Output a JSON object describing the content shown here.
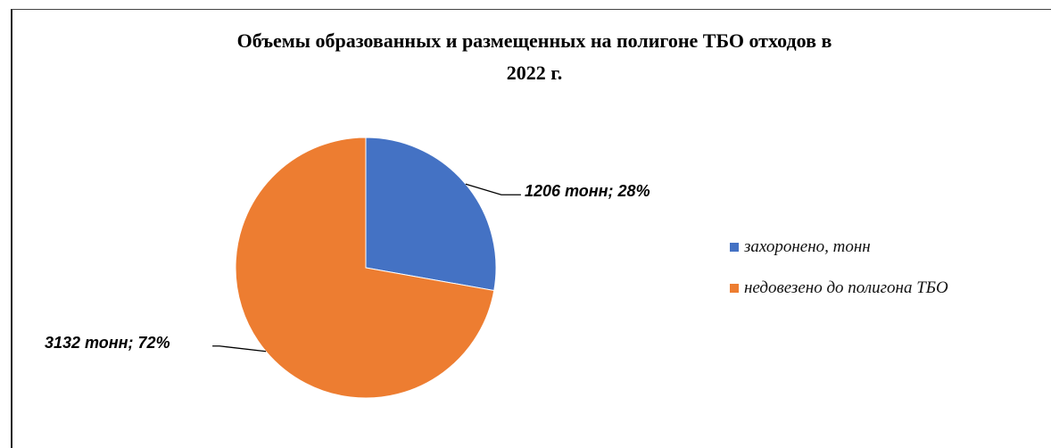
{
  "chart_data": {
    "type": "pie",
    "title_lines": [
      "Объемы образованных и размещенных на полигоне ТБО отходов в",
      "2022 г."
    ],
    "slices": [
      {
        "name": "захоронено, тонн",
        "value": 1206,
        "percent": 28,
        "label": "1206 тонн; 28%",
        "color": "#4472C4"
      },
      {
        "name": "недовезено до полигона ТБО",
        "value": 3132,
        "percent": 72,
        "label": "3132 тонн; 72%",
        "color": "#ED7D31"
      }
    ],
    "legend_position": "right"
  }
}
